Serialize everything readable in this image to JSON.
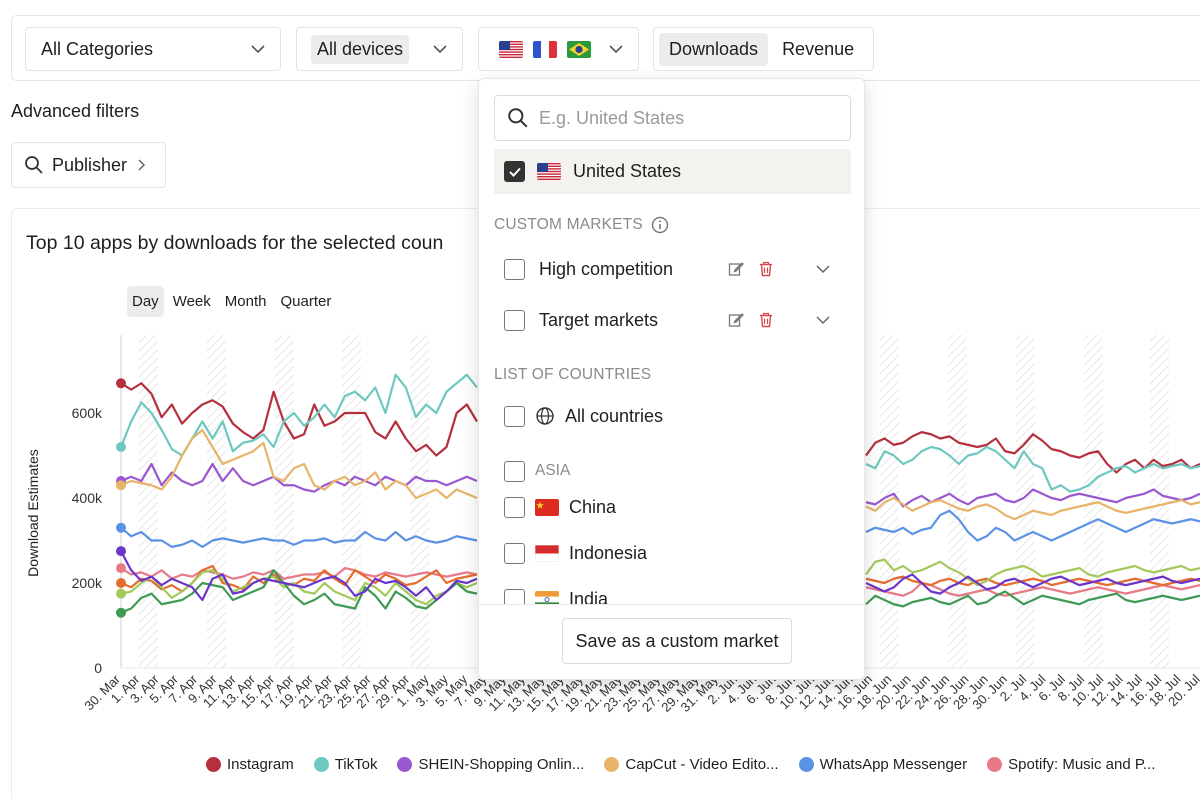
{
  "filters": {
    "category": "All Categories",
    "device": "All devices",
    "metric_tabs": [
      {
        "label": "Downloads",
        "active": true
      },
      {
        "label": "Revenue",
        "active": false
      }
    ]
  },
  "advanced": {
    "title": "Advanced filters",
    "publisher_label": "Publisher"
  },
  "card": {
    "title": "Top 10 apps by downloads for the selected coun",
    "periods": [
      {
        "label": "Day",
        "active": true
      },
      {
        "label": "Week",
        "active": false
      },
      {
        "label": "Month",
        "active": false
      },
      {
        "label": "Quarter",
        "active": false
      }
    ]
  },
  "country_dropdown": {
    "search_placeholder": "E.g. United States",
    "selected_country": "United States",
    "custom_markets_heading": "CUSTOM MARKETS",
    "custom_markets": [
      {
        "label": "High competition",
        "checked": false
      },
      {
        "label": "Target markets",
        "checked": false
      }
    ],
    "countries_heading": "LIST OF COUNTRIES",
    "all_countries": "All countries",
    "region_label": "ASIA",
    "countries": [
      "China",
      "Indonesia",
      "India"
    ],
    "save_button": "Save as a custom market"
  },
  "colors": {
    "instagram": "#b5303f",
    "tiktok": "#6dc8c0",
    "shein": "#9a58d0",
    "capcut": "#e8b46a",
    "whatsapp": "#5a92e6",
    "spotify": "#e87a88",
    "orange": "#e56b2e",
    "lime": "#a3c95a",
    "green": "#3f9a54",
    "violet": "#6a35c8"
  },
  "chart_data": {
    "type": "line",
    "ylabel": "Download Estimates",
    "yticks": [
      "0",
      "200k",
      "400k",
      "600k"
    ],
    "ylim": [
      0,
      770000
    ],
    "x_tick_labels": [
      "30. Mar",
      "1. Apr",
      "3. Apr",
      "5. Apr",
      "7. Apr",
      "9. Apr",
      "11. Apr",
      "13. Apr",
      "15. Apr",
      "17. Apr",
      "19. Apr",
      "21. Apr",
      "23. Apr",
      "25. Apr",
      "27. Apr",
      "29. Apr",
      "1. May",
      "3. May",
      "5. May",
      "7. May",
      "9. May",
      "11. May",
      "13. May",
      "15. May",
      "17. May",
      "19. May",
      "21. May",
      "23. May",
      "25. May",
      "27. May",
      "29. May",
      "31. May",
      "2. Jun",
      "4. Jun",
      "6. Jun",
      "8. Jun",
      "10. Jun",
      "12. Jun",
      "14. Jun",
      "16. Jun",
      "18. Jun",
      "20. Jun",
      "22. Jun",
      "24. Jun",
      "26. Jun",
      "28. Jun",
      "30. Jun",
      "2. Jul",
      "4. Jul",
      "6. Jul",
      "8. Jul",
      "10. Jul",
      "12. Jul",
      "14. Jul",
      "16. Jul",
      "18. Jul",
      "20. Jul",
      "22. Jul"
    ],
    "legend": [
      {
        "name": "Instagram",
        "color": "#b5303f"
      },
      {
        "name": "TikTok",
        "color": "#6dc8c0"
      },
      {
        "name": "SHEIN-Shopping Onlin...",
        "color": "#9a58d0"
      },
      {
        "name": "CapCut - Video Edito...",
        "color": "#e8b46a"
      },
      {
        "name": "WhatsApp Messenger",
        "color": "#5a92e6"
      },
      {
        "name": "Spotify: Music and P...",
        "color": "#e87a88"
      }
    ],
    "series": [
      {
        "color": "#b5303f",
        "values": [
          670000,
          655000,
          670000,
          645000,
          590000,
          620000,
          575000,
          600000,
          620000,
          630000,
          615000,
          575000,
          555000,
          540000,
          560000,
          650000,
          580000,
          540000,
          550000,
          620000,
          570000,
          580000,
          600000,
          600000,
          600000,
          555000,
          540000,
          580000,
          540000,
          510000,
          525000,
          500000,
          520000,
          600000,
          620000,
          580000
        ]
      },
      {
        "color": "#6dc8c0",
        "values": [
          520000,
          580000,
          625000,
          600000,
          560000,
          515000,
          500000,
          540000,
          580000,
          540000,
          580000,
          510000,
          530000,
          535000,
          550000,
          520000,
          580000,
          600000,
          570000,
          590000,
          620000,
          590000,
          640000,
          650000,
          630000,
          660000,
          600000,
          690000,
          660000,
          590000,
          620000,
          600000,
          650000,
          670000,
          690000,
          660000
        ]
      },
      {
        "color": "#9a58d0",
        "values": [
          440000,
          450000,
          440000,
          480000,
          430000,
          460000,
          440000,
          430000,
          440000,
          480000,
          440000,
          470000,
          440000,
          430000,
          440000,
          450000,
          430000,
          430000,
          420000,
          415000,
          430000,
          440000,
          430000,
          450000,
          440000,
          430000,
          450000,
          440000,
          430000,
          450000,
          440000,
          440000,
          430000,
          440000,
          450000,
          440000
        ]
      },
      {
        "color": "#e8b46a",
        "values": [
          430000,
          440000,
          435000,
          430000,
          420000,
          450000,
          500000,
          540000,
          560000,
          520000,
          480000,
          490000,
          500000,
          510000,
          530000,
          450000,
          440000,
          470000,
          480000,
          430000,
          420000,
          440000,
          450000,
          430000,
          440000,
          460000,
          420000,
          440000,
          430000,
          400000,
          410000,
          420000,
          400000,
          420000,
          410000,
          400000
        ]
      },
      {
        "color": "#5a92e6",
        "values": [
          330000,
          310000,
          320000,
          300000,
          300000,
          285000,
          290000,
          300000,
          285000,
          300000,
          305000,
          300000,
          295000,
          300000,
          305000,
          300000,
          300000,
          290000,
          300000,
          300000,
          305000,
          295000,
          300000,
          300000,
          320000,
          305000,
          300000,
          320000,
          300000,
          310000,
          300000,
          295000,
          300000,
          310000,
          305000,
          300000
        ]
      },
      {
        "color": "#e87a88",
        "values": [
          235000,
          220000,
          225000,
          215000,
          230000,
          210000,
          220000,
          215000,
          230000,
          225000,
          220000,
          210000,
          215000,
          225000,
          220000,
          230000,
          210000,
          215000,
          220000,
          220000,
          225000,
          215000,
          235000,
          230000,
          220000,
          215000,
          225000,
          220000,
          215000,
          220000,
          225000,
          220000,
          215000,
          220000,
          225000,
          220000
        ]
      },
      {
        "color": "#e56b2e",
        "values": [
          200000,
          190000,
          210000,
          205000,
          185000,
          195000,
          180000,
          200000,
          230000,
          240000,
          200000,
          195000,
          185000,
          215000,
          200000,
          220000,
          200000,
          195000,
          210000,
          205000,
          230000,
          210000,
          195000,
          230000,
          215000,
          200000,
          220000,
          210000,
          195000,
          200000,
          215000,
          230000,
          200000,
          210000,
          215000,
          220000
        ]
      },
      {
        "color": "#a3c95a",
        "values": [
          175000,
          180000,
          200000,
          215000,
          190000,
          165000,
          180000,
          200000,
          225000,
          230000,
          210000,
          180000,
          190000,
          200000,
          210000,
          215000,
          190000,
          200000,
          180000,
          175000,
          200000,
          180000,
          170000,
          160000,
          200000,
          190000,
          170000,
          200000,
          180000,
          160000,
          150000,
          170000,
          180000,
          200000,
          190000,
          200000
        ]
      },
      {
        "color": "#3f9a54",
        "values": [
          130000,
          140000,
          165000,
          175000,
          150000,
          155000,
          160000,
          175000,
          200000,
          195000,
          190000,
          160000,
          170000,
          180000,
          190000,
          230000,
          200000,
          170000,
          150000,
          160000,
          175000,
          150000,
          145000,
          140000,
          190000,
          170000,
          140000,
          180000,
          165000,
          145000,
          140000,
          160000,
          180000,
          200000,
          180000,
          175000
        ]
      },
      {
        "color": "#6a35c8",
        "values": [
          275000,
          230000,
          205000,
          215000,
          195000,
          210000,
          200000,
          190000,
          160000,
          210000,
          220000,
          175000,
          180000,
          200000,
          210000,
          205000,
          200000,
          195000,
          190000,
          200000,
          210000,
          215000,
          200000,
          170000,
          180000,
          210000,
          200000,
          205000,
          190000,
          170000,
          190000,
          160000,
          180000,
          205000,
          200000,
          210000
        ]
      }
    ],
    "right_series": [
      {
        "color": "#b5303f",
        "values": [
          500000,
          530000,
          540000,
          525000,
          530000,
          545000,
          555000,
          550000,
          540000,
          545000,
          530000,
          525000,
          520000,
          525000,
          540000,
          510000,
          505000,
          525000,
          550000,
          535000,
          515000,
          510000,
          500000,
          495000,
          505000,
          510000,
          480000,
          460000,
          480000,
          490000,
          470000,
          490000,
          475000,
          480000,
          490000,
          470000,
          480000
        ]
      },
      {
        "color": "#6dc8c0",
        "values": [
          480000,
          470000,
          510000,
          500000,
          480000,
          490000,
          510000,
          520000,
          515000,
          500000,
          480000,
          500000,
          505000,
          520000,
          510000,
          490000,
          470000,
          510000,
          480000,
          470000,
          420000,
          430000,
          415000,
          420000,
          430000,
          450000,
          460000,
          470000,
          475000,
          460000,
          470000,
          480000,
          470000,
          475000,
          480000,
          470000,
          475000
        ]
      },
      {
        "color": "#9a58d0",
        "values": [
          390000,
          385000,
          400000,
          410000,
          380000,
          395000,
          405000,
          390000,
          400000,
          410000,
          395000,
          385000,
          400000,
          405000,
          410000,
          395000,
          390000,
          400000,
          420000,
          410000,
          400000,
          395000,
          405000,
          410000,
          405000,
          400000,
          395000,
          390000,
          400000,
          405000,
          410000,
          420000,
          405000,
          400000,
          395000,
          400000,
          410000
        ]
      },
      {
        "color": "#e8b46a",
        "values": [
          380000,
          370000,
          390000,
          400000,
          385000,
          370000,
          380000,
          390000,
          395000,
          385000,
          375000,
          370000,
          380000,
          385000,
          375000,
          360000,
          350000,
          360000,
          370000,
          365000,
          360000,
          370000,
          375000,
          380000,
          385000,
          390000,
          380000,
          370000,
          365000,
          370000,
          375000,
          380000,
          385000,
          390000,
          395000,
          385000,
          390000
        ]
      },
      {
        "color": "#5a92e6",
        "values": [
          320000,
          330000,
          325000,
          320000,
          330000,
          315000,
          325000,
          330000,
          360000,
          370000,
          350000,
          320000,
          300000,
          310000,
          330000,
          320000,
          300000,
          310000,
          320000,
          310000,
          300000,
          310000,
          320000,
          330000,
          340000,
          350000,
          340000,
          330000,
          320000,
          330000,
          340000,
          350000,
          345000,
          340000,
          345000,
          350000,
          345000
        ]
      },
      {
        "color": "#e87a88",
        "values": [
          190000,
          185000,
          180000,
          175000,
          170000,
          180000,
          200000,
          195000,
          185000,
          175000,
          170000,
          175000,
          180000,
          185000,
          175000,
          170000,
          175000,
          180000,
          185000,
          190000,
          185000,
          180000,
          175000,
          180000,
          185000,
          190000,
          185000,
          180000,
          175000,
          180000,
          185000,
          190000,
          195000,
          190000,
          185000,
          190000,
          195000
        ]
      },
      {
        "color": "#e56b2e",
        "values": [
          210000,
          205000,
          200000,
          210000,
          215000,
          205000,
          200000,
          195000,
          205000,
          210000,
          200000,
          195000,
          205000,
          210000,
          200000,
          195000,
          200000,
          205000,
          210000,
          205000,
          195000,
          200000,
          205000,
          210000,
          205000,
          200000,
          195000,
          200000,
          205000,
          210000,
          205000,
          200000,
          195000,
          200000,
          205000,
          210000,
          205000
        ]
      },
      {
        "color": "#a3c95a",
        "values": [
          220000,
          250000,
          255000,
          230000,
          240000,
          225000,
          230000,
          240000,
          250000,
          235000,
          225000,
          210000,
          195000,
          205000,
          220000,
          230000,
          235000,
          240000,
          230000,
          215000,
          220000,
          225000,
          230000,
          235000,
          220000,
          215000,
          225000,
          230000,
          235000,
          240000,
          230000,
          225000,
          230000,
          235000,
          240000,
          230000,
          235000
        ]
      },
      {
        "color": "#3f9a54",
        "values": [
          150000,
          170000,
          160000,
          150000,
          145000,
          155000,
          160000,
          165000,
          155000,
          150000,
          160000,
          170000,
          150000,
          155000,
          170000,
          180000,
          165000,
          150000,
          160000,
          170000,
          165000,
          160000,
          155000,
          150000,
          160000,
          165000,
          170000,
          175000,
          160000,
          155000,
          160000,
          165000,
          170000,
          165000,
          160000,
          165000,
          170000
        ]
      },
      {
        "color": "#6a35c8",
        "values": [
          200000,
          190000,
          180000,
          190000,
          210000,
          220000,
          200000,
          180000,
          175000,
          190000,
          200000,
          215000,
          200000,
          185000,
          190000,
          205000,
          210000,
          200000,
          190000,
          200000,
          210000,
          215000,
          205000,
          195000,
          200000,
          205000,
          210000,
          200000,
          195000,
          200000,
          205000,
          210000,
          215000,
          205000,
          200000,
          205000,
          210000
        ]
      }
    ]
  }
}
